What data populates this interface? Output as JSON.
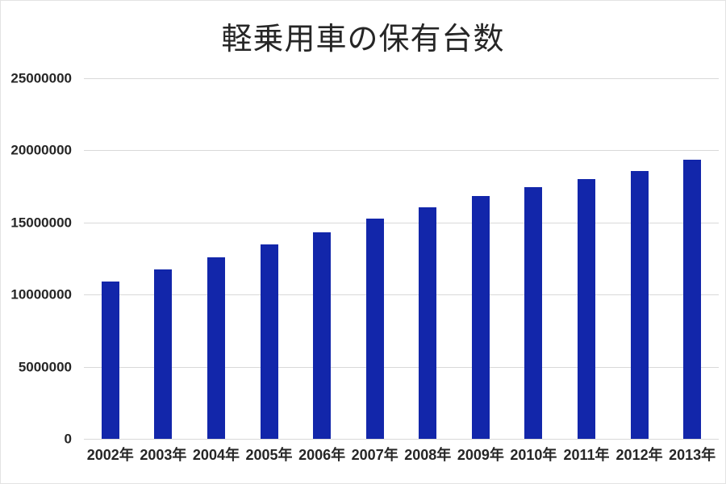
{
  "page": {
    "background": "#ffffff",
    "border_color": "#e3e3e3"
  },
  "chart_data": {
    "type": "bar",
    "title": "軽乗用車の保有台数",
    "categories": [
      "2002年",
      "2003年",
      "2004年",
      "2005年",
      "2006年",
      "2007年",
      "2008年",
      "2009年",
      "2010年",
      "2011年",
      "2012年",
      "2013年"
    ],
    "values": [
      10900000,
      11750000,
      12600000,
      13500000,
      14300000,
      15250000,
      16050000,
      16850000,
      17450000,
      18000000,
      18550000,
      19350000
    ],
    "xlabel": "",
    "ylabel": "",
    "ylim": [
      0,
      25000000
    ],
    "ytick_step": 5000000,
    "yticks": [
      "25000000",
      "20000000",
      "15000000",
      "10000000",
      "5000000",
      "0"
    ],
    "grid": true,
    "legend": "none",
    "bar_color": "#1226aa",
    "gridline_color": "#d9d9d9",
    "title_color": "#262626",
    "axis_label_color": "#262626"
  }
}
